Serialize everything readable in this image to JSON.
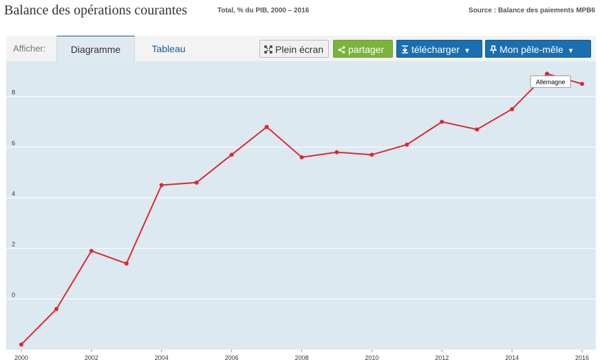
{
  "header": {
    "title": "Balance des opérations courantes",
    "subtitle": "Total, % du PIB, 2000 – 2016",
    "source": "Source : Balance des paiements MPB6"
  },
  "toolbar": {
    "afficher_label": "Afficher:",
    "tabs": [
      {
        "label": "Diagramme",
        "active": true
      },
      {
        "label": "Tableau",
        "active": false
      }
    ],
    "buttons": {
      "plein_ecran": "Plein écran",
      "partager": "partager",
      "telecharger": "télécharger",
      "pele_mele": "Mon pêle-mêle"
    },
    "icons": {
      "plein_ecran": "fullscreen-icon",
      "partager": "share-icon",
      "telecharger": "download-icon",
      "pele_mele": "pin-icon",
      "dropdown": "chevron-down-icon"
    }
  },
  "colors": {
    "plot_background": "#dde9f1",
    "line": "#e0262b",
    "grid": "#ffffff",
    "accent": "#1a6fb0",
    "share": "#7bb33b"
  },
  "chart_data": {
    "type": "line",
    "x": [
      2000,
      2001,
      2002,
      2003,
      2004,
      2005,
      2006,
      2007,
      2008,
      2009,
      2010,
      2011,
      2012,
      2013,
      2014,
      2015,
      2016
    ],
    "series": [
      {
        "name": "Allemagne",
        "values": [
          -1.8,
          -0.4,
          1.9,
          1.4,
          4.5,
          4.6,
          5.7,
          6.8,
          5.6,
          5.8,
          5.7,
          6.1,
          7.0,
          6.7,
          7.5,
          8.9,
          8.5
        ]
      }
    ],
    "x_tick_labels": [
      "2000",
      "2002",
      "2004",
      "2006",
      "2008",
      "2010",
      "2012",
      "2014",
      "2016"
    ],
    "y_tick_labels": [
      "0",
      "2",
      "4",
      "6",
      "8"
    ],
    "ylim": [
      -2,
      9.4
    ],
    "grid": true,
    "legend": "none",
    "annotation": {
      "text": "Allemagne",
      "at_x": 2015
    }
  }
}
